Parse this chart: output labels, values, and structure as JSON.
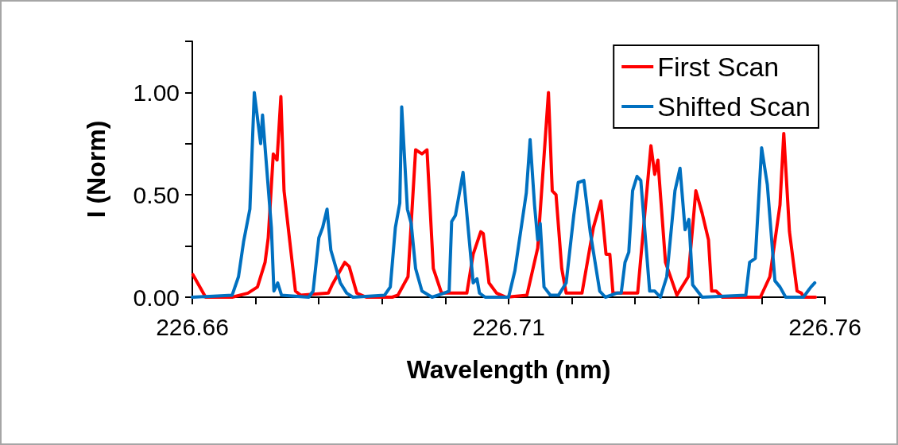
{
  "chart_data": {
    "type": "line",
    "xlabel": "Wavelength (nm)",
    "ylabel": "I (Norm)",
    "xlim": [
      226.66,
      226.76
    ],
    "xticks": [
      {
        "value": 226.66,
        "label": "226.66"
      },
      {
        "value": 226.67,
        "label": null
      },
      {
        "value": 226.68,
        "label": null
      },
      {
        "value": 226.69,
        "label": null
      },
      {
        "value": 226.7,
        "label": null
      },
      {
        "value": 226.71,
        "label": "226.71"
      },
      {
        "value": 226.72,
        "label": null
      },
      {
        "value": 226.73,
        "label": null
      },
      {
        "value": 226.74,
        "label": null
      },
      {
        "value": 226.75,
        "label": null
      },
      {
        "value": 226.76,
        "label": "226.76"
      }
    ],
    "ylim": [
      0,
      1.25
    ],
    "yticks": [
      {
        "value": 0,
        "label": "0.00"
      },
      {
        "value": 0.25,
        "label": null
      },
      {
        "value": 0.5,
        "label": "0.50"
      },
      {
        "value": 0.75,
        "label": null
      },
      {
        "value": 1,
        "label": "1.00"
      },
      {
        "value": 1.25,
        "label": null
      }
    ],
    "grid": false,
    "legend": "top right",
    "marker": "none",
    "line_style": "solid",
    "series": [
      {
        "name": "First Scan",
        "color": "#ff0000",
        "x": [
          226.6601,
          226.6621,
          226.6663,
          226.6688,
          226.6703,
          226.6709,
          226.6715,
          226.672,
          226.6728,
          226.6734,
          226.674,
          226.6745,
          226.6763,
          226.6771,
          226.6815,
          226.6821,
          226.6841,
          226.6848,
          226.686,
          226.6875,
          226.6916,
          226.6925,
          226.6941,
          226.6953,
          226.6963,
          226.6971,
          226.6981,
          226.6994,
          226.7034,
          226.7044,
          226.7056,
          226.706,
          226.7069,
          226.7081,
          226.7096,
          226.7129,
          226.7146,
          226.7163,
          226.7169,
          226.7175,
          226.7184,
          226.7191,
          226.7216,
          226.7234,
          226.7246,
          226.7254,
          226.726,
          226.7265,
          226.7304,
          226.7325,
          226.7331,
          226.7336,
          226.7348,
          226.7366,
          226.7384,
          226.7396,
          226.7406,
          226.7416,
          226.7421,
          226.7428,
          226.7438,
          226.7498,
          226.7513,
          226.7529,
          226.7535,
          226.7544,
          226.7556,
          226.7563,
          226.7566,
          226.7585
        ],
        "values": [
          0.11,
          0,
          0,
          0.02,
          0.05,
          0.11,
          0.17,
          0.29,
          0.7,
          0.67,
          0.98,
          0.52,
          0.03,
          0.01,
          0.02,
          0.06,
          0.17,
          0.15,
          0.02,
          0,
          0,
          0.01,
          0.1,
          0.72,
          0.7,
          0.72,
          0.14,
          0.02,
          0.02,
          0.21,
          0.32,
          0.31,
          0.07,
          0.02,
          0,
          0.01,
          0.24,
          1.0,
          0.52,
          0.5,
          0.14,
          0.02,
          0.02,
          0.34,
          0.47,
          0.21,
          0.21,
          0.02,
          0.02,
          0.74,
          0.6,
          0.67,
          0.17,
          0.01,
          0.1,
          0.52,
          0.41,
          0.28,
          0.03,
          0.03,
          0,
          0,
          0.1,
          0.45,
          0.8,
          0.32,
          0.03,
          0.02,
          0,
          0
        ]
      },
      {
        "name": "Shifted Scan",
        "color": "#0070c0",
        "x": [
          226.66,
          226.6663,
          226.6673,
          226.6681,
          226.6691,
          226.6698,
          226.6708,
          226.6711,
          226.6725,
          226.6729,
          226.6735,
          226.6741,
          226.6784,
          226.6791,
          226.68,
          226.6806,
          226.6813,
          226.6819,
          226.6834,
          226.6844,
          226.6854,
          226.6904,
          226.6913,
          226.6921,
          226.6928,
          226.6931,
          226.694,
          226.6946,
          226.6953,
          226.6963,
          226.6979,
          226.6998,
          226.7006,
          226.701,
          226.7016,
          226.7028,
          226.7044,
          226.705,
          226.7054,
          226.7063,
          226.71,
          226.711,
          226.7128,
          226.7134,
          226.7141,
          226.7146,
          226.715,
          226.7156,
          226.7166,
          226.7179,
          226.7191,
          226.7203,
          226.721,
          226.7219,
          226.7229,
          226.7244,
          226.7253,
          226.7271,
          226.7278,
          226.7284,
          226.729,
          226.7296,
          226.7303,
          226.7309,
          226.7323,
          226.7331,
          226.734,
          226.735,
          226.7363,
          226.7371,
          226.7379,
          226.7385,
          226.7391,
          226.7406,
          226.7475,
          226.7481,
          226.749,
          226.75,
          226.7509,
          226.7521,
          226.7529,
          226.7538,
          226.7566,
          226.7578,
          226.7584
        ],
        "values": [
          0,
          0.01,
          0.1,
          0.27,
          0.43,
          1.0,
          0.75,
          0.89,
          0.34,
          0.03,
          0.07,
          0.01,
          0,
          0.03,
          0.29,
          0.34,
          0.43,
          0.23,
          0.07,
          0.02,
          0,
          0.01,
          0.05,
          0.34,
          0.46,
          0.93,
          0.43,
          0.36,
          0.14,
          0.03,
          0,
          0.02,
          0.03,
          0.37,
          0.4,
          0.61,
          0.07,
          0.09,
          0.02,
          0,
          0,
          0.13,
          0.51,
          0.77,
          0.45,
          0.28,
          0.36,
          0.05,
          0.01,
          0.01,
          0.07,
          0.4,
          0.56,
          0.57,
          0.32,
          0.03,
          0,
          0.02,
          0.02,
          0.17,
          0.22,
          0.52,
          0.59,
          0.57,
          0.03,
          0.03,
          0,
          0.1,
          0.52,
          0.63,
          0.33,
          0.38,
          0.06,
          0,
          0.01,
          0.17,
          0.19,
          0.73,
          0.55,
          0.08,
          0.05,
          0,
          0,
          0.05,
          0.07
        ]
      }
    ]
  }
}
